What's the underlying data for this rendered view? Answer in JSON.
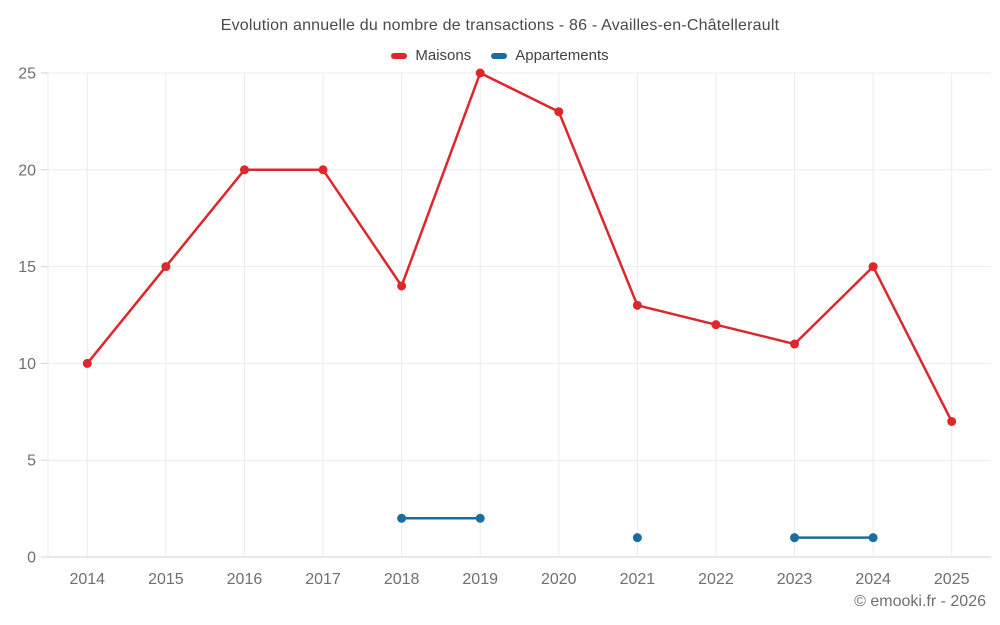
{
  "title": "Evolution annuelle du nombre de transactions - 86 - Availles-en-Châtellerault",
  "watermark": "© emooki.fr - 2026",
  "colors": {
    "maisons": "#dc272c",
    "appartements": "#1a6d9e",
    "gridline": "#ebebeb",
    "axis_line": "#d3d3d3",
    "tick_mark": "#d3d3d3",
    "tick_text": "#6f6f6f",
    "title_text": "#4a4a4a",
    "background": "#ffffff"
  },
  "chart_data": {
    "type": "line",
    "title": "Evolution annuelle du nombre de transactions - 86 - Availles-en-Châtellerault",
    "categories": [
      "2014",
      "2015",
      "2016",
      "2017",
      "2018",
      "2019",
      "2020",
      "2021",
      "2022",
      "2023",
      "2024",
      "2025"
    ],
    "series": [
      {
        "name": "Maisons",
        "color": "#dc272c",
        "values": [
          10,
          15,
          20,
          20,
          14,
          25,
          23,
          13,
          12,
          11,
          15,
          7
        ]
      },
      {
        "name": "Appartements",
        "color": "#1a6d9e",
        "values": [
          null,
          null,
          null,
          null,
          2,
          2,
          null,
          1,
          null,
          1,
          1,
          null
        ]
      }
    ],
    "xlabel": "",
    "ylabel": "",
    "ylim": [
      0,
      25
    ],
    "ytick_step": 5,
    "yticks": [
      0,
      5,
      10,
      15,
      20,
      25
    ],
    "grid": true,
    "legend_position": "top",
    "markers": true
  }
}
